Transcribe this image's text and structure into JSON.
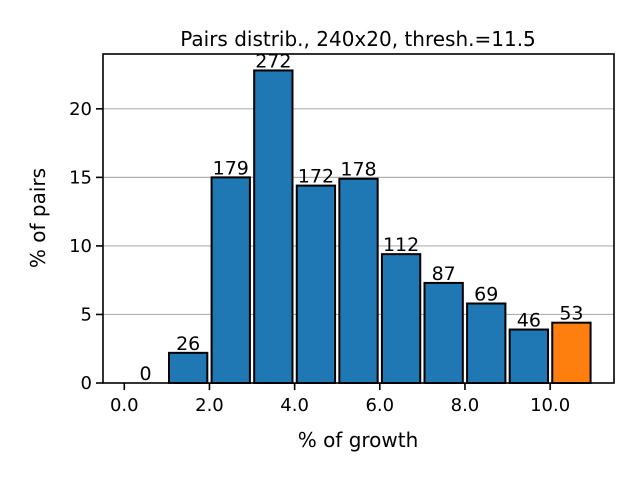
{
  "chart_data": {
    "type": "bar",
    "title": "Pairs distrib., 240x20, thresh.=11.5",
    "xlabel": "% of growth",
    "ylabel": "% of pairs",
    "xlim": [
      -0.5,
      11.5
    ],
    "ylim": [
      0,
      24
    ],
    "grid": "y",
    "bar_width": 0.9,
    "x_ticks": [
      0,
      2,
      4,
      6,
      8,
      10
    ],
    "x_tick_labels": [
      "0.0",
      "2.0",
      "4.0",
      "6.0",
      "8.0",
      "10.0"
    ],
    "y_ticks": [
      0,
      5,
      10,
      15,
      20
    ],
    "y_tick_labels": [
      "0",
      "5",
      "10",
      "15",
      "20"
    ],
    "bars": [
      {
        "x": 0.5,
        "value": 0.0,
        "count": "0",
        "color": "#1f77b4"
      },
      {
        "x": 1.5,
        "value": 2.2,
        "count": "26",
        "color": "#1f77b4"
      },
      {
        "x": 2.5,
        "value": 15.0,
        "count": "179",
        "color": "#1f77b4"
      },
      {
        "x": 3.5,
        "value": 22.8,
        "count": "272",
        "color": "#1f77b4"
      },
      {
        "x": 4.5,
        "value": 14.4,
        "count": "172",
        "color": "#1f77b4"
      },
      {
        "x": 5.5,
        "value": 14.9,
        "count": "178",
        "color": "#1f77b4"
      },
      {
        "x": 6.5,
        "value": 9.4,
        "count": "112",
        "color": "#1f77b4"
      },
      {
        "x": 7.5,
        "value": 7.3,
        "count": "87",
        "color": "#1f77b4"
      },
      {
        "x": 8.5,
        "value": 5.8,
        "count": "69",
        "color": "#1f77b4"
      },
      {
        "x": 9.5,
        "value": 3.9,
        "count": "46",
        "color": "#1f77b4"
      },
      {
        "x": 10.5,
        "value": 4.4,
        "count": "53",
        "color": "#ff7f0e"
      }
    ]
  }
}
